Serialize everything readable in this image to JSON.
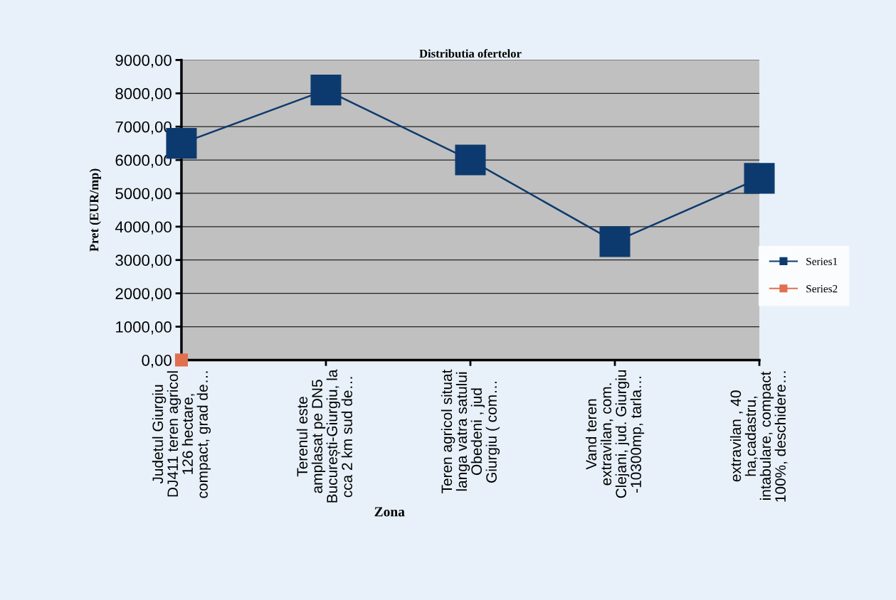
{
  "chart_data": {
    "type": "line",
    "title": "Distributia ofertelor",
    "xlabel": "Zona",
    "ylabel": "Pret (EUR/mp)",
    "categories": [
      "Judetul Giurgiu\nDJ411 teren agricol\n126 hectare,\ncompact, grad de…",
      "Terenul este\namplasat pe DN5\nBucurești-Giurgiu, la\ncca 2 km sud de…",
      "Teren agricol situat\nlanga vatra satului\nObedeni , jud\nGiurgiu ( com…",
      "Vand teren\nextravilan, com.\nClejani, jud. Giurgiu\n-10300mp, tarla…",
      "extravilan , 40\nha,cadastru,\nintabulare, compact\n100%, deschidere…"
    ],
    "series": [
      {
        "name": "Series1",
        "color": "#0d3a6e",
        "values": [
          6500,
          8100,
          6000,
          3550,
          5450
        ]
      },
      {
        "name": "Series2",
        "color": "#e07050",
        "values": [
          0,
          null,
          null,
          null,
          null
        ]
      }
    ],
    "ylim": [
      0,
      9000
    ],
    "yticks": [
      {
        "value": 0,
        "label": "0,00"
      },
      {
        "value": 1000,
        "label": "1000,00"
      },
      {
        "value": 2000,
        "label": "2000,00"
      },
      {
        "value": 3000,
        "label": "3000,00"
      },
      {
        "value": 4000,
        "label": "4000,00"
      },
      {
        "value": 5000,
        "label": "5000,00"
      },
      {
        "value": 6000,
        "label": "6000,00"
      },
      {
        "value": 7000,
        "label": "7000,00"
      },
      {
        "value": 8000,
        "label": "8000,00"
      },
      {
        "value": 9000,
        "label": "9000,00"
      }
    ],
    "grid": "y",
    "legend": "right",
    "marker": "square",
    "line_style": "solid"
  }
}
